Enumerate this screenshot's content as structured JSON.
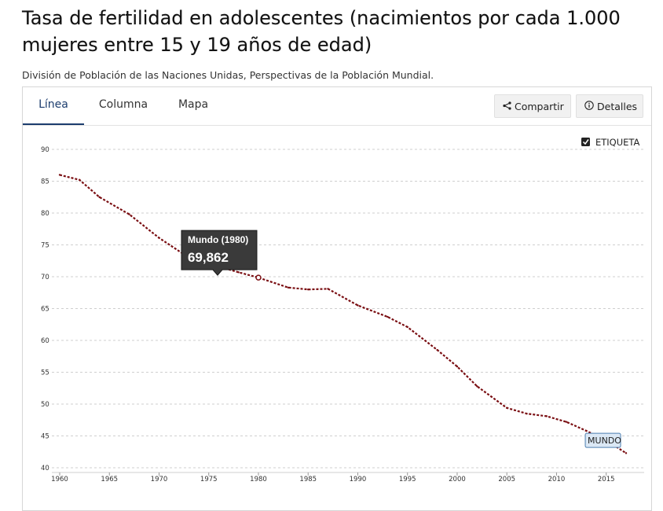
{
  "header": {
    "title": "Tasa de fertilidad en adolescentes (nacimientos por cada 1.000 mujeres entre 15 y 19 años de edad)",
    "source": "División de Población de las Naciones Unidas, Perspectivas de la Población Mundial."
  },
  "tabs": [
    {
      "label": "Línea",
      "active": true
    },
    {
      "label": "Columna",
      "active": false
    },
    {
      "label": "Mapa",
      "active": false
    }
  ],
  "toolbar": {
    "share_label": "Compartir",
    "details_label": "Detalles"
  },
  "legend": {
    "checkbox_label": "ETIQUETA",
    "checked": true
  },
  "tooltip": {
    "title": "Mundo (1980)",
    "value": "69,862"
  },
  "colors": {
    "series": "#7a0e12",
    "accent": "#1c3d6e",
    "tooltip_bg": "#3a3a3a",
    "label_border": "#4d7fb0",
    "label_bg": "#dbe8f5"
  },
  "chart_data": {
    "type": "line",
    "title": "",
    "xlabel": "",
    "ylabel": "",
    "xlim": [
      1960,
      2017
    ],
    "ylim": [
      40,
      90
    ],
    "x_ticks": [
      1960,
      1965,
      1970,
      1975,
      1980,
      1985,
      1990,
      1995,
      2000,
      2005,
      2010,
      2015
    ],
    "y_ticks": [
      40,
      45,
      50,
      55,
      60,
      65,
      70,
      75,
      80,
      85,
      90
    ],
    "grid": true,
    "series": [
      {
        "name": "Mundo",
        "end_label": "MUNDO",
        "x": [
          1960,
          1962,
          1964,
          1967,
          1970,
          1973,
          1976,
          1978,
          1980,
          1983,
          1985,
          1987,
          1990,
          1993,
          1995,
          1998,
          2000,
          2002,
          2005,
          2007,
          2009,
          2011,
          2013,
          2015,
          2017
        ],
        "values": [
          86.0,
          85.2,
          82.5,
          79.8,
          76.1,
          73.0,
          71.6,
          70.7,
          69.862,
          68.3,
          68.0,
          68.1,
          65.5,
          63.7,
          62.1,
          58.5,
          55.9,
          52.8,
          49.4,
          48.5,
          48.1,
          47.2,
          45.8,
          44.3,
          42.3
        ]
      }
    ]
  }
}
